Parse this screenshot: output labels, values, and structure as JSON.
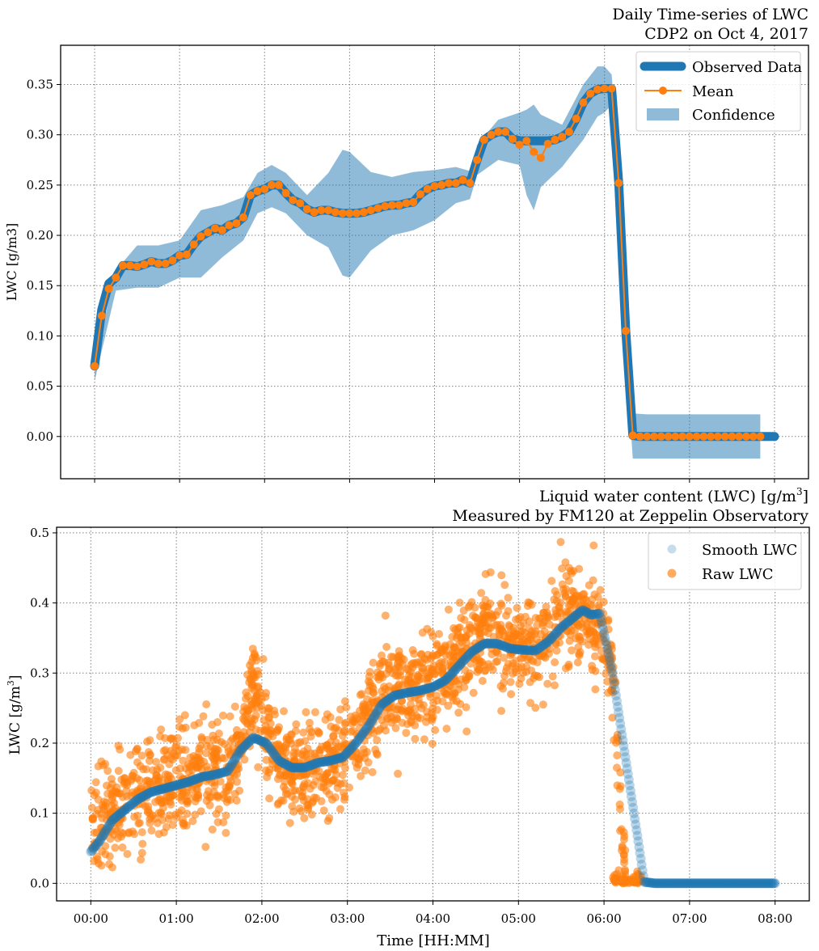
{
  "chart_data": [
    {
      "type": "line",
      "title": "Daily Time-series of LWC",
      "subtitle": "CDP2 on Oct 4, 2017",
      "ylabel": "LWC [g/m3]",
      "xlabel": "",
      "xlim": [
        -0.4,
        8.4
      ],
      "ylim": [
        -0.042,
        0.389
      ],
      "y_ticks": [
        "0.00",
        "0.05",
        "0.10",
        "0.15",
        "0.20",
        "0.25",
        "0.30",
        "0.35"
      ],
      "grid": true,
      "legend_position": "top-right",
      "legend": [
        "Observed Data",
        "Mean",
        "Confidence"
      ],
      "colors": {
        "observed": "#1f77b4",
        "mean": "#ff7f0e",
        "confidence": "#8fbbd9"
      },
      "series": [
        {
          "name": "Mean",
          "x_hours": [
            0.0,
            0.083,
            0.167,
            0.25,
            0.333,
            0.417,
            0.5,
            0.583,
            0.667,
            0.75,
            0.833,
            0.917,
            1.0,
            1.083,
            1.167,
            1.25,
            1.333,
            1.417,
            1.5,
            1.583,
            1.667,
            1.75,
            1.833,
            1.917,
            2.0,
            2.083,
            2.167,
            2.25,
            2.333,
            2.417,
            2.5,
            2.583,
            2.667,
            2.75,
            2.833,
            2.917,
            3.0,
            3.083,
            3.167,
            3.25,
            3.333,
            3.417,
            3.5,
            3.583,
            3.667,
            3.75,
            3.833,
            3.917,
            4.0,
            4.083,
            4.167,
            4.25,
            4.333,
            4.417,
            4.5,
            4.583,
            4.667,
            4.75,
            4.833,
            4.917,
            5.0,
            5.083,
            5.167,
            5.25,
            5.333,
            5.417,
            5.5,
            5.583,
            5.667,
            5.75,
            5.833,
            5.917,
            6.0,
            6.083,
            6.167,
            6.25,
            6.333,
            6.417,
            6.5,
            6.583,
            6.667,
            6.75,
            6.833,
            6.917,
            7.0,
            7.083,
            7.167,
            7.25,
            7.333,
            7.417,
            7.5,
            7.583,
            7.667,
            7.75,
            7.833
          ],
          "values": [
            0.07,
            0.12,
            0.147,
            0.158,
            0.17,
            0.17,
            0.169,
            0.171,
            0.174,
            0.172,
            0.172,
            0.175,
            0.18,
            0.181,
            0.191,
            0.199,
            0.203,
            0.207,
            0.205,
            0.21,
            0.212,
            0.218,
            0.24,
            0.244,
            0.246,
            0.25,
            0.25,
            0.242,
            0.235,
            0.232,
            0.226,
            0.223,
            0.225,
            0.225,
            0.223,
            0.222,
            0.222,
            0.222,
            0.223,
            0.225,
            0.227,
            0.229,
            0.23,
            0.23,
            0.232,
            0.233,
            0.241,
            0.246,
            0.249,
            0.25,
            0.252,
            0.252,
            0.255,
            0.252,
            0.275,
            0.295,
            0.3,
            0.303,
            0.303,
            0.296,
            0.29,
            0.294,
            0.283,
            0.277,
            0.291,
            0.295,
            0.298,
            0.303,
            0.316,
            0.332,
            0.341,
            0.345,
            0.346,
            0.346,
            0.252,
            0.105,
            0.001,
            0.0,
            0.0,
            0.0,
            0.0,
            0.0,
            0.0,
            0.0,
            0.0,
            0.0,
            0.0,
            0.0,
            0.0,
            0.0,
            0.0,
            0.0,
            0.0,
            0.0,
            0.0
          ]
        },
        {
          "name": "Observed Data",
          "x_hours": [
            0.0,
            0.083,
            0.167,
            0.25,
            0.333,
            0.417,
            0.5,
            0.583,
            0.667,
            0.75,
            0.833,
            0.917,
            1.0,
            1.083,
            1.167,
            1.25,
            1.333,
            1.417,
            1.5,
            1.583,
            1.667,
            1.75,
            1.833,
            1.917,
            2.0,
            2.083,
            2.167,
            2.25,
            2.333,
            2.417,
            2.5,
            2.583,
            2.667,
            2.75,
            2.833,
            2.917,
            3.0,
            3.083,
            3.167,
            3.25,
            3.333,
            3.417,
            3.5,
            3.583,
            3.667,
            3.75,
            3.833,
            3.917,
            4.0,
            4.083,
            4.167,
            4.25,
            4.333,
            4.417,
            4.5,
            4.583,
            4.667,
            4.75,
            4.833,
            4.917,
            5.0,
            5.083,
            5.167,
            5.25,
            5.333,
            5.417,
            5.5,
            5.583,
            5.667,
            5.75,
            5.833,
            5.917,
            6.0,
            6.083,
            6.167,
            6.25,
            6.333,
            6.417,
            6.5,
            6.583,
            6.667,
            6.75,
            6.833,
            6.917,
            7.0,
            7.083,
            7.167,
            7.25,
            7.333,
            7.417,
            7.5,
            7.583,
            7.667,
            7.75,
            7.833,
            8.0
          ],
          "values": [
            0.07,
            0.126,
            0.152,
            0.158,
            0.17,
            0.17,
            0.169,
            0.171,
            0.174,
            0.172,
            0.172,
            0.175,
            0.18,
            0.181,
            0.191,
            0.199,
            0.203,
            0.207,
            0.205,
            0.21,
            0.212,
            0.218,
            0.24,
            0.244,
            0.246,
            0.25,
            0.25,
            0.242,
            0.235,
            0.232,
            0.226,
            0.223,
            0.225,
            0.225,
            0.223,
            0.222,
            0.222,
            0.222,
            0.223,
            0.225,
            0.227,
            0.229,
            0.23,
            0.23,
            0.232,
            0.233,
            0.241,
            0.246,
            0.249,
            0.25,
            0.252,
            0.252,
            0.255,
            0.252,
            0.275,
            0.295,
            0.3,
            0.303,
            0.303,
            0.296,
            0.294,
            0.294,
            0.294,
            0.294,
            0.294,
            0.295,
            0.298,
            0.303,
            0.316,
            0.332,
            0.341,
            0.345,
            0.346,
            0.346,
            0.252,
            0.105,
            0.001,
            0.0,
            0.0,
            0.0,
            0.0,
            0.0,
            0.0,
            0.0,
            0.0,
            0.0,
            0.0,
            0.0,
            0.0,
            0.0,
            0.0,
            0.0,
            0.0,
            0.0,
            0.0,
            0.0
          ]
        },
        {
          "name": "Confidence",
          "x_hours": [
            0.0,
            0.25,
            0.5,
            0.75,
            1.0,
            1.25,
            1.5,
            1.75,
            1.917,
            2.083,
            2.25,
            2.5,
            2.75,
            2.917,
            3.0,
            3.25,
            3.5,
            3.75,
            4.0,
            4.25,
            4.417,
            4.5,
            4.75,
            5.0,
            5.083,
            5.167,
            5.25,
            5.5,
            5.75,
            5.917,
            6.0,
            6.083,
            6.167,
            6.25,
            6.333,
            6.5,
            7.0,
            7.5,
            7.833
          ],
          "upper": [
            0.075,
            0.165,
            0.19,
            0.19,
            0.195,
            0.225,
            0.23,
            0.238,
            0.262,
            0.27,
            0.262,
            0.24,
            0.262,
            0.285,
            0.283,
            0.263,
            0.258,
            0.263,
            0.265,
            0.268,
            0.264,
            0.29,
            0.315,
            0.322,
            0.325,
            0.33,
            0.32,
            0.31,
            0.35,
            0.368,
            0.368,
            0.36,
            0.27,
            0.12,
            0.023,
            0.022,
            0.022,
            0.022,
            0.022
          ],
          "lower": [
            0.055,
            0.145,
            0.148,
            0.148,
            0.158,
            0.158,
            0.178,
            0.195,
            0.222,
            0.228,
            0.222,
            0.2,
            0.188,
            0.16,
            0.158,
            0.185,
            0.2,
            0.205,
            0.215,
            0.232,
            0.236,
            0.26,
            0.275,
            0.27,
            0.24,
            0.225,
            0.248,
            0.268,
            0.295,
            0.318,
            0.322,
            0.33,
            0.232,
            0.08,
            -0.022,
            -0.022,
            -0.022,
            -0.022,
            -0.022
          ]
        }
      ]
    },
    {
      "type": "scatter",
      "title": "Liquid water content (LWC) [g/m³]",
      "subtitle": "Measured by FM120 at Zeppelin Observatory",
      "xlabel": "Time [HH:MM]",
      "ylabel": "LWC [g/m³]",
      "xlim": [
        -0.4,
        8.4
      ],
      "ylim": [
        -0.025,
        0.508
      ],
      "x_ticks": [
        "00:00",
        "01:00",
        "02:00",
        "03:00",
        "04:00",
        "05:00",
        "06:00",
        "07:00",
        "08:00"
      ],
      "y_ticks": [
        "0.0",
        "0.1",
        "0.2",
        "0.3",
        "0.4",
        "0.5"
      ],
      "grid": true,
      "legend_position": "top-right",
      "legend": [
        "Smooth LWC",
        "Raw LWC"
      ],
      "colors": {
        "smooth": "#1f77b4",
        "raw": "#ff7f0e"
      },
      "series": [
        {
          "name": "Smooth LWC",
          "x_hours": [
            0.0,
            0.1,
            0.25,
            0.4,
            0.55,
            0.7,
            0.85,
            1.0,
            1.15,
            1.3,
            1.45,
            1.6,
            1.75,
            1.9,
            2.05,
            2.2,
            2.35,
            2.5,
            2.65,
            2.8,
            2.95,
            3.1,
            3.25,
            3.4,
            3.55,
            3.7,
            3.85,
            4.0,
            4.15,
            4.3,
            4.45,
            4.6,
            4.75,
            4.9,
            5.05,
            5.2,
            5.35,
            5.5,
            5.65,
            5.75,
            5.85,
            5.95,
            6.1,
            6.25,
            6.4,
            6.47,
            6.6,
            7.0,
            7.5,
            8.0
          ],
          "values": [
            0.045,
            0.06,
            0.09,
            0.105,
            0.12,
            0.13,
            0.135,
            0.14,
            0.145,
            0.152,
            0.155,
            0.16,
            0.19,
            0.208,
            0.2,
            0.175,
            0.165,
            0.165,
            0.172,
            0.175,
            0.18,
            0.2,
            0.225,
            0.255,
            0.268,
            0.272,
            0.275,
            0.28,
            0.29,
            0.31,
            0.33,
            0.342,
            0.342,
            0.335,
            0.333,
            0.332,
            0.345,
            0.365,
            0.38,
            0.39,
            0.383,
            0.385,
            0.3,
            0.18,
            0.06,
            0.002,
            0.0,
            0.0,
            0.0,
            0.0
          ]
        },
        {
          "name": "Raw LWC",
          "x_range_hours": [
            0.0,
            6.25
          ],
          "trend_anchor_x": [
            0.0,
            0.1,
            0.25,
            0.4,
            0.55,
            0.7,
            0.85,
            1.0,
            1.15,
            1.3,
            1.45,
            1.6,
            1.75,
            1.9,
            2.05,
            2.2,
            2.35,
            2.5,
            2.65,
            2.8,
            2.95,
            3.1,
            3.25,
            3.4,
            3.55,
            3.7,
            3.85,
            4.0,
            4.15,
            4.3,
            4.45,
            4.6,
            4.75,
            4.9,
            5.05,
            5.2,
            5.35,
            5.5,
            5.65,
            5.75,
            5.85,
            5.95,
            6.1,
            6.25
          ],
          "trend_anchor_y": [
            0.085,
            0.09,
            0.105,
            0.115,
            0.13,
            0.14,
            0.145,
            0.145,
            0.15,
            0.16,
            0.165,
            0.15,
            0.2,
            0.28,
            0.21,
            0.17,
            0.155,
            0.155,
            0.165,
            0.175,
            0.185,
            0.205,
            0.235,
            0.265,
            0.275,
            0.28,
            0.285,
            0.295,
            0.3,
            0.315,
            0.34,
            0.35,
            0.35,
            0.34,
            0.335,
            0.335,
            0.36,
            0.385,
            0.39,
            0.38,
            0.37,
            0.36,
            0.3,
            0.0
          ],
          "spread": 0.035,
          "tail_zero_range_hours": [
            6.1,
            6.45
          ],
          "approx_point_count": 1800
        }
      ]
    }
  ]
}
